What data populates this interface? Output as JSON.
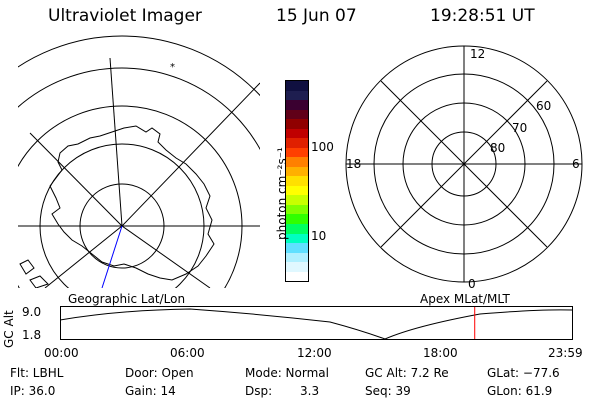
{
  "header": {
    "title": "Ultraviolet Imager",
    "date": "15 Jun 07",
    "time": "19:28:51 UT"
  },
  "left_map": {
    "caption": "Geographic Lat/Lon"
  },
  "right_map": {
    "caption": "Apex MLat/MLT",
    "mlt_labels": [
      "12",
      "18",
      "6",
      "0"
    ],
    "mlat_labels": [
      "60",
      "70",
      "80"
    ]
  },
  "colorbar": {
    "label": "photon cm⁻²s⁻¹",
    "tick_labels": [
      "100",
      "10"
    ],
    "colors": [
      "#101040",
      "#1e1e50",
      "#3a0030",
      "#600018",
      "#900000",
      "#c00000",
      "#e02000",
      "#ff4000",
      "#ff8000",
      "#ffb000",
      "#ffe000",
      "#ffff00",
      "#c8ff00",
      "#80ff00",
      "#30ff00",
      "#00ff60",
      "#00ffc0",
      "#60e0ff",
      "#b0f0ff",
      "#e0f8ff",
      "#ffffff"
    ]
  },
  "altitude_panel": {
    "ylabel": "GC Alt",
    "yticks": [
      "9.0",
      "1.8"
    ],
    "xticks": [
      "00:00",
      "06:00",
      "12:00",
      "18:00",
      "23:59"
    ],
    "current_time_fraction": 0.81,
    "marker_color": "#ff0000"
  },
  "info": {
    "filt": "Flt: LBHL",
    "ip": "IP: 36.0",
    "door": "Door: Open",
    "gain": "Gain: 14",
    "mode": "Mode: Normal",
    "dsp_label": "Dsp:",
    "dsp_value": "3.3",
    "gc_alt": "GC Alt: 7.2 Re",
    "seq": "Seq: 39",
    "glat": "GLat: −77.6",
    "glon": "GLon: 61.9"
  }
}
